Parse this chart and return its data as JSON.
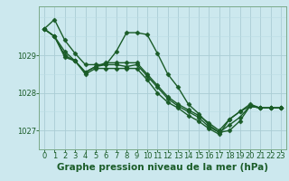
{
  "background_color": "#cce8ee",
  "plot_bg_color": "#cce8ee",
  "grid_major_color": "#aaccd4",
  "grid_minor_color": "#bbdde4",
  "line_color": "#1a5c28",
  "marker": "D",
  "markersize": 2.5,
  "linewidth": 1.0,
  "xlabel": "Graphe pression niveau de la mer (hPa)",
  "xlabel_fontsize": 7.5,
  "xlabel_bold": true,
  "tick_fontsize": 6.0,
  "ylim": [
    1026.5,
    1030.3
  ],
  "xlim": [
    -0.5,
    23.5
  ],
  "yticks": [
    1027,
    1028,
    1029
  ],
  "xticks": [
    0,
    1,
    2,
    3,
    4,
    5,
    6,
    7,
    8,
    9,
    10,
    11,
    12,
    13,
    14,
    15,
    16,
    17,
    18,
    19,
    20,
    21,
    22,
    23
  ],
  "series": [
    [
      1029.7,
      1029.95,
      1029.4,
      1029.05,
      1028.75,
      1028.75,
      1028.75,
      1029.1,
      1029.6,
      1029.6,
      1029.55,
      1029.05,
      1028.5,
      1028.15,
      1027.7,
      1027.45,
      1027.15,
      1026.95,
      1027.0,
      1027.25,
      1027.65,
      1027.6,
      1027.6,
      1027.6
    ],
    [
      1029.7,
      1029.5,
      1029.1,
      1028.85,
      1028.55,
      1028.7,
      1028.75,
      1028.75,
      1028.7,
      1028.75,
      1028.45,
      1028.15,
      1027.85,
      1027.65,
      1027.5,
      1027.35,
      1027.1,
      1026.95,
      1027.15,
      1027.35,
      1027.65,
      1027.6,
      1027.6,
      1027.6
    ],
    [
      1029.7,
      1029.5,
      1029.0,
      1028.85,
      1028.5,
      1028.65,
      1028.65,
      1028.65,
      1028.65,
      1028.65,
      1028.35,
      1028.0,
      1027.75,
      1027.6,
      1027.4,
      1027.25,
      1027.05,
      1026.9,
      1027.3,
      1027.5,
      1027.65,
      1027.6,
      1027.6,
      1027.6
    ],
    [
      1029.7,
      1029.5,
      1028.95,
      1028.85,
      1028.55,
      1028.7,
      1028.8,
      1028.8,
      1028.8,
      1028.8,
      1028.5,
      1028.2,
      1027.9,
      1027.7,
      1027.55,
      1027.4,
      1027.2,
      1027.0,
      1027.3,
      1027.5,
      1027.7,
      1027.6,
      1027.6,
      1027.6
    ]
  ]
}
